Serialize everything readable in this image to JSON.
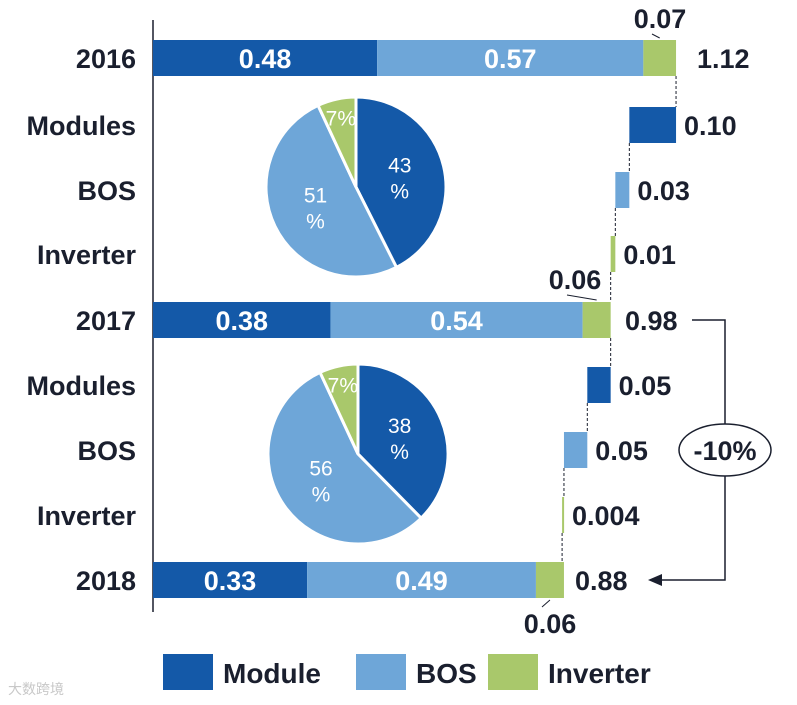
{
  "chart_data": {
    "type": "bar",
    "subtype": "waterfall",
    "categories": [
      "2016",
      "Modules",
      "BOS",
      "Inverter",
      "2017",
      "Modules",
      "BOS",
      "Inverter",
      "2018"
    ],
    "totals": [
      {
        "year": "2016",
        "module": 0.48,
        "bos": 0.57,
        "inverter": 0.07,
        "total": 1.12
      },
      {
        "year": "2017",
        "module": 0.38,
        "bos": 0.54,
        "inverter": 0.06,
        "total": 0.98
      },
      {
        "year": "2018",
        "module": 0.33,
        "bos": 0.49,
        "inverter": 0.06,
        "total": 0.88
      }
    ],
    "total_labels": {
      "module": [
        "0.48",
        "0.38",
        "0.33"
      ],
      "bos": [
        "0.57",
        "0.54",
        "0.49"
      ],
      "inverter": [
        "0.07",
        "0.06",
        "0.06"
      ],
      "total": [
        "1.12",
        "0.98",
        "0.88"
      ]
    },
    "changes": [
      {
        "label": "Modules",
        "component": "module",
        "value": 0.1,
        "display": "0.10"
      },
      {
        "label": "BOS",
        "component": "bos",
        "value": 0.03,
        "display": "0.03"
      },
      {
        "label": "Inverter",
        "component": "inverter",
        "value": 0.01,
        "display": "0.01"
      },
      {
        "label": "Modules",
        "component": "module",
        "value": 0.05,
        "display": "0.05"
      },
      {
        "label": "BOS",
        "component": "bos",
        "value": 0.05,
        "display": "0.05"
      },
      {
        "label": "Inverter",
        "component": "inverter",
        "value": 0.004,
        "display": "0.004"
      }
    ],
    "pies": [
      {
        "slices": [
          {
            "component": "module",
            "value": 43,
            "label_line1": "43",
            "label_line2": "%"
          },
          {
            "component": "bos",
            "value": 51,
            "label_line1": "51",
            "label_line2": "%"
          },
          {
            "component": "inverter",
            "value": 7,
            "label_line1": "7%",
            "label_line2": ""
          }
        ]
      },
      {
        "slices": [
          {
            "component": "module",
            "value": 38,
            "label_line1": "38",
            "label_line2": "%"
          },
          {
            "component": "bos",
            "value": 56,
            "label_line1": "56",
            "label_line2": "%"
          },
          {
            "component": "inverter",
            "value": 7,
            "label_line1": "7%",
            "label_line2": ""
          }
        ]
      }
    ],
    "overall_change": "-10%",
    "legend": [
      {
        "component": "module",
        "label": "Module"
      },
      {
        "component": "bos",
        "label": "BOS"
      },
      {
        "component": "inverter",
        "label": "Inverter"
      }
    ],
    "colors": {
      "module": "#1459a8",
      "bos": "#6ea6d8",
      "inverter": "#a9c86b"
    },
    "xlim": [
      0,
      1.12
    ],
    "title": "",
    "xlabel": "",
    "ylabel": ""
  },
  "watermark": "大数跨境"
}
